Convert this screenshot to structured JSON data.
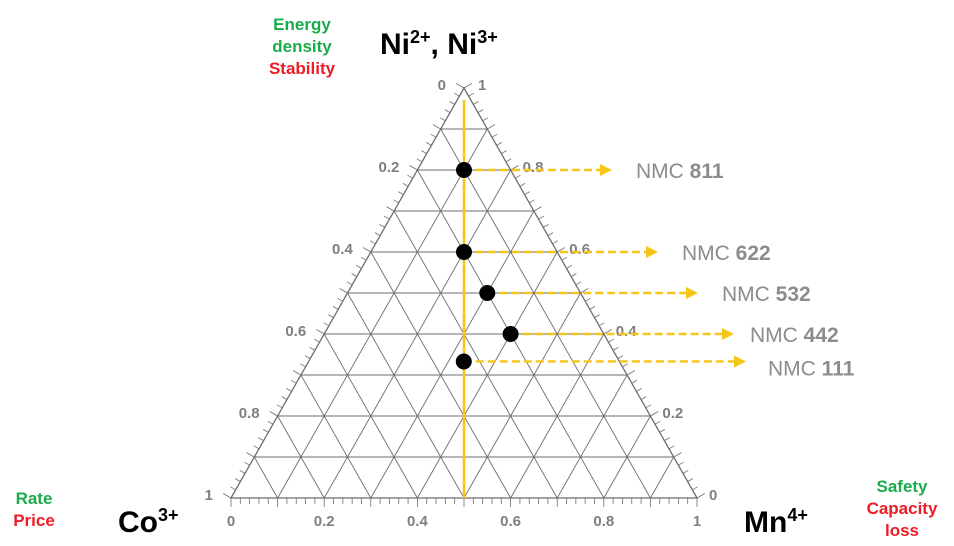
{
  "top_apex": {
    "label": "Ni",
    "ion1": "2+",
    "sep": ", Ni",
    "ion2": "3+"
  },
  "left_apex": {
    "label": "Co",
    "ion": "3+"
  },
  "right_apex": {
    "label": "Mn",
    "ion": "4+"
  },
  "top_properties": {
    "positive": [
      "Energy",
      "density"
    ],
    "negative": [
      "Stability"
    ]
  },
  "left_properties": {
    "positive": [
      "Rate"
    ],
    "negative": [
      "Price"
    ]
  },
  "right_properties": {
    "positive": [
      "Safety"
    ],
    "negative": [
      "Capacity",
      "loss"
    ]
  },
  "axes": {
    "left_edge_ticks": [
      "0",
      "0.2",
      "0.4",
      "0.6",
      "0.8",
      "1"
    ],
    "right_edge_ticks": [
      "1",
      "0.8",
      "0.6",
      "0.4",
      "0.2",
      "0"
    ],
    "bottom_edge_ticks": [
      "0",
      "0.2",
      "0.4",
      "0.6",
      "0.8",
      "1"
    ]
  },
  "colors": {
    "accent": "#f5c518",
    "grid": "#6e6e6e",
    "point": "#000000",
    "label": "#8c8c8c"
  },
  "compositions": [
    {
      "prefix": "NMC ",
      "code": "811",
      "ni": 0.8,
      "mn": 0.1,
      "co": 0.1
    },
    {
      "prefix": "NMC ",
      "code": "622",
      "ni": 0.6,
      "mn": 0.2,
      "co": 0.2
    },
    {
      "prefix": "NMC ",
      "code": "532",
      "ni": 0.5,
      "mn": 0.3,
      "co": 0.2
    },
    {
      "prefix": "NMC ",
      "code": "442",
      "ni": 0.4,
      "mn": 0.4,
      "co": 0.2
    },
    {
      "prefix": "NMC ",
      "code": "111",
      "ni": 0.333,
      "mn": 0.333,
      "co": 0.333
    }
  ]
}
